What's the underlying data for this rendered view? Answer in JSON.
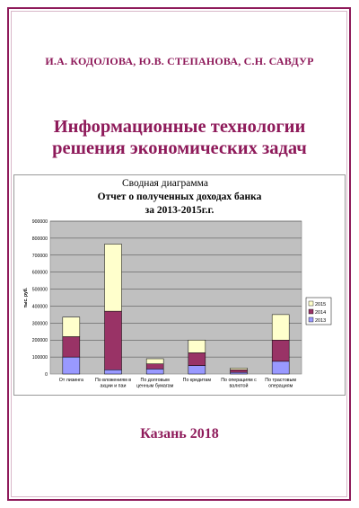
{
  "cover": {
    "authors": "И.А. КОДОЛОВА, Ю.В. СТЕПАНОВА, С.Н. САВДУР",
    "title_line1": "Информационные технологии",
    "title_line2": "решения экономических задач",
    "city_year": "Казань 2018"
  },
  "colors": {
    "accent": "#8e1a5a",
    "series_2013": "#9999ff",
    "series_2014": "#993366",
    "series_2015": "#ffffcc",
    "plot_bg": "#c0c0c0"
  },
  "chart_data": {
    "type": "bar",
    "stacked": true,
    "title_line1": "Сводная диаграмма",
    "title_line2": "Отчет о полученных доходах банка",
    "title_line3": "за 2013-2015г.г.",
    "ylabel": "тыс. руб.",
    "xlabel": "",
    "ylim": [
      0,
      900000
    ],
    "yticks": [
      0,
      100000,
      200000,
      300000,
      400000,
      500000,
      600000,
      700000,
      800000,
      900000
    ],
    "grid": true,
    "legend_position": "right",
    "categories": [
      [
        "От лизинга"
      ],
      [
        "По вложениям в",
        "акции и паи"
      ],
      [
        "По долговым",
        "ценным бумагам"
      ],
      [
        "По кредитам"
      ],
      [
        "По операциям с",
        "валютой"
      ],
      [
        "По трастовым",
        "операциям"
      ]
    ],
    "series": [
      {
        "name": "2013",
        "values": [
          100000,
          25000,
          30000,
          50000,
          10000,
          75000
        ]
      },
      {
        "name": "2014",
        "values": [
          120000,
          345000,
          30000,
          75000,
          15000,
          125000
        ]
      },
      {
        "name": "2015",
        "values": [
          115000,
          395000,
          30000,
          75000,
          10000,
          150000
        ]
      }
    ]
  }
}
